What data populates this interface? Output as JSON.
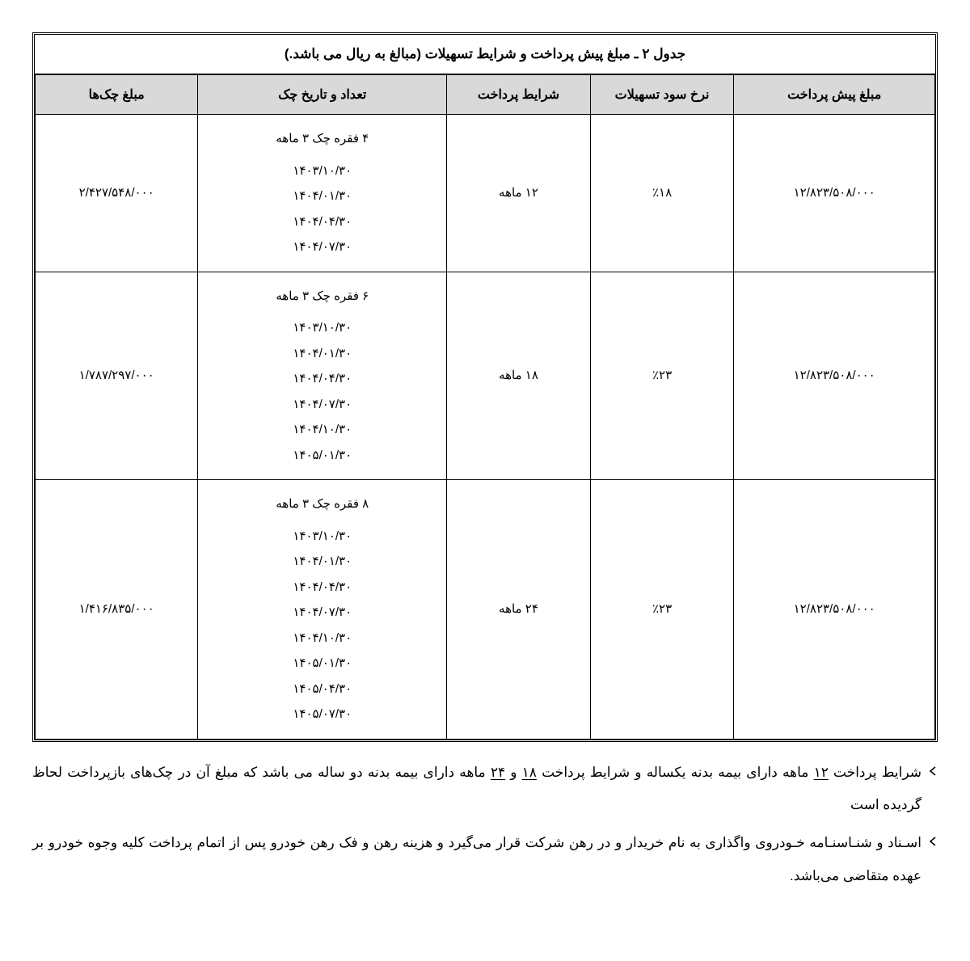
{
  "table": {
    "title": "جدول ۲ ـ مبلغ پیش پرداخت و شرایط تسهیلات (مبالغ به ریال می باشد.)",
    "headers": {
      "prepay": "مبلغ پیش پرداخت",
      "rate": "نرخ سود تسهیلات",
      "terms": "شرایط پرداخت",
      "detail": "تعداد و تاریخ چک",
      "amount": "مبلغ چک‌ها"
    },
    "rows": [
      {
        "prepay": "۱۲/۸۲۳/۵۰۸/۰۰۰",
        "rate": "٪۱۸",
        "terms": "۱۲ ماهه",
        "detail_head": "۴ فقره چک ۳ ماهه",
        "detail_dates": [
          "۱۴۰۳/۱۰/۳۰",
          "۱۴۰۴/۰۱/۳۰",
          "۱۴۰۴/۰۴/۳۰",
          "۱۴۰۴/۰۷/۳۰"
        ],
        "amount": "۲/۴۲۷/۵۴۸/۰۰۰"
      },
      {
        "prepay": "۱۲/۸۲۳/۵۰۸/۰۰۰",
        "rate": "٪۲۳",
        "terms": "۱۸ ماهه",
        "detail_head": "۶ فقره چک ۳ ماهه",
        "detail_dates": [
          "۱۴۰۳/۱۰/۳۰",
          "۱۴۰۴/۰۱/۳۰",
          "۱۴۰۴/۰۴/۳۰",
          "۱۴۰۴/۰۷/۳۰",
          "۱۴۰۴/۱۰/۳۰",
          "۱۴۰۵/۰۱/۳۰"
        ],
        "amount": "۱/۷۸۷/۲۹۷/۰۰۰"
      },
      {
        "prepay": "۱۲/۸۲۳/۵۰۸/۰۰۰",
        "rate": "٪۲۳",
        "terms": "۲۴ ماهه",
        "detail_head": "۸ فقره چک ۳ ماهه",
        "detail_dates": [
          "۱۴۰۳/۱۰/۳۰",
          "۱۴۰۴/۰۱/۳۰",
          "۱۴۰۴/۰۴/۳۰",
          "۱۴۰۴/۰۷/۳۰",
          "۱۴۰۴/۱۰/۳۰",
          "۱۴۰۵/۰۱/۳۰",
          "۱۴۰۵/۰۴/۳۰",
          "۱۴۰۵/۰۷/۳۰"
        ],
        "amount": "۱/۴۱۶/۸۳۵/۰۰۰"
      }
    ]
  },
  "notes": {
    "n1": {
      "pre": "شرایط پرداخت ",
      "u1": "۱۲",
      "mid1": " ماهه دارای بیمه بدنه یکساله و شرایط پرداخت ",
      "u2": "۱۸",
      "mid2": " و ",
      "u3": "۲۴",
      "post": " ماهه دارای بیمه بدنه دو ساله می باشد که مبلغ آن در چک‌های بازپرداخت لحاظ گردیده است"
    },
    "n2": "اسـناد و شنـاسنـامه خـودروی واگذاری به نام خریدار و در رهن شرکت قرار می‌گیرد و هزینه رهن و فک رهن خودرو پس از اتمام پرداخت کلیه وجوه خودرو بر عهده متقاضی می‌باشد."
  }
}
